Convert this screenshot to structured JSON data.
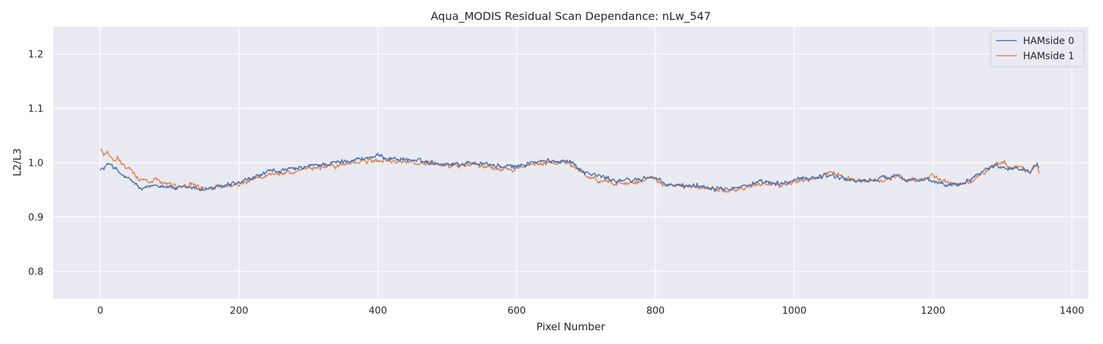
{
  "chart_data": {
    "type": "line",
    "title": "Aqua_MODIS Residual Scan Dependance: nLw_547",
    "xlabel": "Pixel Number",
    "ylabel": "L2/L3",
    "xlim": [
      -68,
      1424
    ],
    "ylim": [
      0.75,
      1.25
    ],
    "x_ticks": [
      0,
      200,
      400,
      600,
      800,
      1000,
      1200,
      1400
    ],
    "y_ticks": [
      0.8,
      0.9,
      1.0,
      1.1,
      1.2
    ],
    "y_tick_labels": [
      "0.8",
      "0.9",
      "1.0",
      "1.1",
      "1.2"
    ],
    "grid": true,
    "legend_position": "top-right",
    "pixel_range": [
      0,
      1353
    ],
    "series": [
      {
        "name": "HAMside 0",
        "color": "#4c72b0",
        "x": [
          0,
          5,
          10,
          15,
          20,
          25,
          30,
          40,
          50,
          55,
          60,
          70,
          80,
          90,
          100,
          110,
          120,
          130,
          140,
          150,
          160,
          170,
          180,
          190,
          200,
          210,
          220,
          230,
          240,
          250,
          260,
          270,
          280,
          290,
          300,
          320,
          340,
          360,
          380,
          400,
          420,
          440,
          460,
          480,
          500,
          520,
          540,
          560,
          580,
          600,
          620,
          640,
          660,
          670,
          680,
          690,
          700,
          720,
          740,
          760,
          780,
          790,
          800,
          810,
          820,
          840,
          860,
          880,
          900,
          920,
          940,
          960,
          980,
          1000,
          1020,
          1040,
          1050,
          1060,
          1080,
          1100,
          1120,
          1140,
          1150,
          1160,
          1180,
          1200,
          1220,
          1240,
          1260,
          1270,
          1280,
          1290,
          1300,
          1310,
          1320,
          1330,
          1340,
          1345,
          1350,
          1353
        ],
        "y": [
          0.99,
          0.988,
          0.996,
          1.0,
          0.99,
          0.985,
          0.978,
          0.97,
          0.962,
          0.955,
          0.95,
          0.955,
          0.96,
          0.958,
          0.956,
          0.952,
          0.953,
          0.955,
          0.952,
          0.951,
          0.953,
          0.955,
          0.957,
          0.96,
          0.962,
          0.967,
          0.972,
          0.977,
          0.982,
          0.985,
          0.985,
          0.987,
          0.988,
          0.99,
          0.993,
          0.997,
          1.0,
          1.005,
          1.008,
          1.012,
          1.008,
          1.006,
          1.003,
          1.0,
          0.998,
          0.998,
          1.0,
          0.997,
          0.992,
          0.993,
          1.0,
          1.002,
          1.003,
          1.006,
          1.0,
          0.99,
          0.982,
          0.975,
          0.968,
          0.967,
          0.97,
          0.975,
          0.97,
          0.963,
          0.958,
          0.958,
          0.958,
          0.955,
          0.955,
          0.955,
          0.962,
          0.963,
          0.96,
          0.968,
          0.972,
          0.975,
          0.978,
          0.975,
          0.968,
          0.966,
          0.97,
          0.975,
          0.978,
          0.97,
          0.968,
          0.965,
          0.96,
          0.962,
          0.975,
          0.985,
          0.99,
          0.995,
          0.993,
          0.99,
          0.99,
          0.988,
          0.985,
          0.995,
          1.002,
          0.99
        ]
      },
      {
        "name": "HAMside 1",
        "color": "#dd8452",
        "x": [
          0,
          5,
          10,
          15,
          20,
          25,
          30,
          40,
          50,
          55,
          60,
          70,
          80,
          90,
          100,
          110,
          120,
          130,
          140,
          150,
          160,
          170,
          180,
          190,
          200,
          210,
          220,
          230,
          240,
          250,
          260,
          270,
          280,
          290,
          300,
          320,
          340,
          360,
          380,
          400,
          420,
          440,
          460,
          480,
          500,
          520,
          540,
          560,
          580,
          600,
          620,
          640,
          660,
          670,
          680,
          690,
          700,
          720,
          740,
          760,
          780,
          790,
          800,
          810,
          820,
          840,
          860,
          880,
          900,
          920,
          940,
          960,
          980,
          1000,
          1020,
          1040,
          1050,
          1060,
          1080,
          1100,
          1120,
          1140,
          1150,
          1160,
          1180,
          1200,
          1220,
          1240,
          1260,
          1270,
          1280,
          1290,
          1300,
          1310,
          1320,
          1330,
          1340,
          1345,
          1350,
          1353
        ],
        "y": [
          1.025,
          1.015,
          1.022,
          1.012,
          1.0,
          1.01,
          0.998,
          0.99,
          0.978,
          0.972,
          0.968,
          0.965,
          0.97,
          0.965,
          0.962,
          0.958,
          0.958,
          0.96,
          0.955,
          0.952,
          0.953,
          0.955,
          0.957,
          0.958,
          0.96,
          0.964,
          0.968,
          0.972,
          0.977,
          0.98,
          0.98,
          0.982,
          0.983,
          0.985,
          0.988,
          0.992,
          0.995,
          0.999,
          1.002,
          1.004,
          1.002,
          1.001,
          1.0,
          0.997,
          0.993,
          0.995,
          0.997,
          0.992,
          0.988,
          0.99,
          0.996,
          0.998,
          1.0,
          1.002,
          0.995,
          0.985,
          0.976,
          0.968,
          0.964,
          0.962,
          0.966,
          0.972,
          0.968,
          0.96,
          0.957,
          0.956,
          0.955,
          0.952,
          0.95,
          0.95,
          0.958,
          0.962,
          0.958,
          0.965,
          0.97,
          0.975,
          0.982,
          0.978,
          0.97,
          0.965,
          0.968,
          0.972,
          0.975,
          0.968,
          0.967,
          0.976,
          0.963,
          0.958,
          0.97,
          0.98,
          0.988,
          0.997,
          1.0,
          0.994,
          0.99,
          0.987,
          0.985,
          0.99,
          1.0,
          0.985
        ]
      }
    ]
  }
}
